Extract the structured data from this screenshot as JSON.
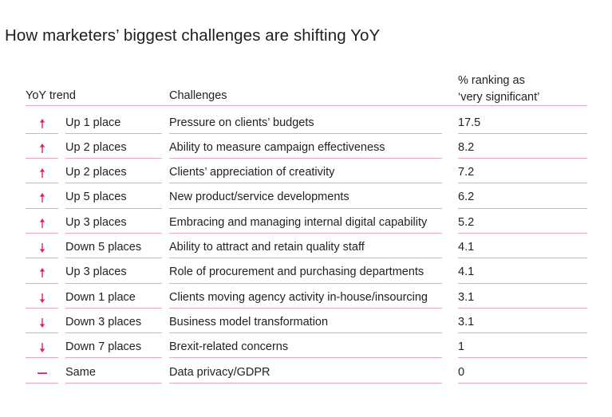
{
  "title": "How marketers’ biggest challenges are shifting YoY",
  "colors": {
    "accent": "#e0245e",
    "rule": "#e8a7bd"
  },
  "headers": {
    "trend": "YoY trend",
    "challenges": "Challenges",
    "pct_line1": "% ranking as",
    "pct_line2": "‘very significant’"
  },
  "rows": [
    {
      "direction": "up",
      "icon": "arrow-up-icon",
      "trend": "Up 1 place",
      "challenge": "Pressure on clients’ budgets",
      "pct": "17.5"
    },
    {
      "direction": "up",
      "icon": "arrow-up-icon",
      "trend": "Up 2 places",
      "challenge": "Ability to measure campaign effectiveness",
      "pct": "8.2"
    },
    {
      "direction": "up",
      "icon": "arrow-up-icon",
      "trend": "Up 2 places",
      "challenge": "Clients’ appreciation of creativity",
      "pct": "7.2"
    },
    {
      "direction": "up",
      "icon": "arrow-up-icon",
      "trend": "Up 5 places",
      "challenge": "New product/service developments",
      "pct": "6.2"
    },
    {
      "direction": "up",
      "icon": "arrow-up-icon",
      "trend": "Up 3 places",
      "challenge": "Embracing and managing internal digital capability",
      "pct": "5.2"
    },
    {
      "direction": "down",
      "icon": "arrow-down-icon",
      "trend": "Down 5 places",
      "challenge": "Ability to attract and retain quality staff",
      "pct": "4.1"
    },
    {
      "direction": "up",
      "icon": "arrow-up-icon",
      "trend": "Up 3 places",
      "challenge": "Role of procurement and purchasing departments",
      "pct": "4.1"
    },
    {
      "direction": "down",
      "icon": "arrow-down-icon",
      "trend": "Down 1 place",
      "challenge": "Clients moving agency activity in-house/insourcing",
      "pct": "3.1"
    },
    {
      "direction": "down",
      "icon": "arrow-down-icon",
      "trend": "Down 3 places",
      "challenge": "Business model transformation",
      "pct": "3.1"
    },
    {
      "direction": "down",
      "icon": "arrow-down-icon",
      "trend": "Down 7 places",
      "challenge": "Brexit-related concerns",
      "pct": "1"
    },
    {
      "direction": "same",
      "icon": "dash-icon",
      "trend": "Same",
      "challenge": "Data privacy/GDPR",
      "pct": "0"
    }
  ]
}
